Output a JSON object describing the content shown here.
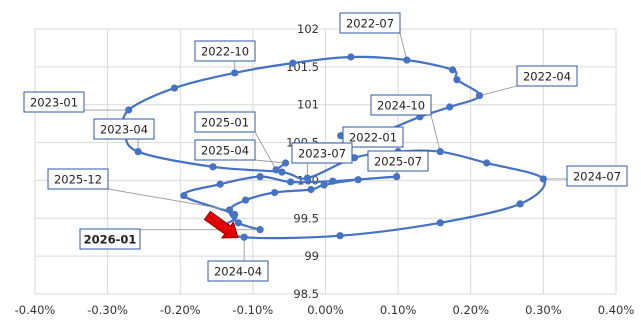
{
  "chart_data": {
    "type": "scatter",
    "title": "",
    "xlabel": "",
    "ylabel": "",
    "xlim": [
      -0.4,
      0.4
    ],
    "ylim": [
      98.5,
      102
    ],
    "x_unit": "%",
    "x_ticks": [
      "-0.40%",
      "-0.30%",
      "-0.20%",
      "-0.10%",
      "0.00%",
      "0.10%",
      "0.20%",
      "0.30%",
      "0.40%"
    ],
    "y_ticks": [
      "98.5",
      "99",
      "99.5",
      "100",
      "100.5",
      "101",
      "101.5",
      "102"
    ],
    "grid": true,
    "line_color": "#4472C4",
    "label_border_color": "#2E5AAC",
    "arrow_color": "#E00000",
    "series": [
      {
        "points": [
          {
            "date": "2022-01",
            "x": 0.021,
            "y": 100.59
          },
          {
            "x": 0.065,
            "y": 100.6
          },
          {
            "x": 0.13,
            "y": 100.84
          },
          {
            "x": 0.171,
            "y": 100.97
          },
          {
            "date": "2022-04",
            "x": 0.212,
            "y": 101.12
          },
          {
            "x": 0.181,
            "y": 101.33
          },
          {
            "x": 0.175,
            "y": 101.46
          },
          {
            "date": "2022-07",
            "x": 0.112,
            "y": 101.59
          },
          {
            "x": 0.035,
            "y": 101.63
          },
          {
            "x": -0.045,
            "y": 101.55
          },
          {
            "date": "2022-10",
            "x": -0.125,
            "y": 101.42
          },
          {
            "x": -0.208,
            "y": 101.22
          },
          {
            "date": "2023-01",
            "x": -0.271,
            "y": 100.93
          },
          {
            "x": -0.276,
            "y": 100.65
          },
          {
            "date": "2023-04",
            "x": -0.258,
            "y": 100.38
          },
          {
            "x": -0.155,
            "y": 100.18
          },
          {
            "x": -0.06,
            "y": 100.11
          },
          {
            "date": "2023-07",
            "x": -0.025,
            "y": 100.03
          },
          {
            "x": 0.04,
            "y": 100.3
          },
          {
            "x": 0.1,
            "y": 100.38
          },
          {
            "date": "2024-10",
            "x": 0.158,
            "y": 100.38
          },
          {
            "x": 0.222,
            "y": 100.23
          },
          {
            "date": "2024-07",
            "x": 0.3,
            "y": 100.02
          },
          {
            "x": 0.268,
            "y": 99.69
          },
          {
            "x": 0.158,
            "y": 99.44
          },
          {
            "x": 0.02,
            "y": 99.27
          },
          {
            "date": "2024-04",
            "x": -0.112,
            "y": 99.25
          },
          {
            "x": -0.137,
            "y": 99.4
          },
          {
            "x": -0.125,
            "y": 99.55
          },
          {
            "x": -0.195,
            "y": 99.8
          },
          {
            "x": -0.145,
            "y": 99.95
          },
          {
            "x": -0.09,
            "y": 100.05
          },
          {
            "x": -0.048,
            "y": 99.98
          },
          {
            "x": 0.01,
            "y": 99.99
          },
          {
            "date": "2025-07",
            "x": 0.098,
            "y": 100.05
          },
          {
            "x": 0.045,
            "y": 100.01
          },
          {
            "x": -0.002,
            "y": 99.94
          },
          {
            "x": -0.02,
            "y": 99.88
          },
          {
            "x": -0.07,
            "y": 99.84
          },
          {
            "x": -0.11,
            "y": 99.74
          },
          {
            "date": "2025-12",
            "x": -0.132,
            "y": 99.61
          },
          {
            "x": -0.12,
            "y": 99.44
          },
          {
            "date": "2026-01",
            "x": -0.09,
            "y": 99.35
          }
        ]
      },
      {
        "points": [
          {
            "date": "2025-04",
            "x": -0.055,
            "y": 100.23
          },
          {
            "date": "2025-01",
            "x": -0.068,
            "y": 100.14
          }
        ]
      }
    ],
    "annotations": [
      {
        "text": "2022-07",
        "date": "2022-07"
      },
      {
        "text": "2022-10",
        "date": "2022-10"
      },
      {
        "text": "2022-04",
        "date": "2022-04"
      },
      {
        "text": "2023-01",
        "date": "2023-01"
      },
      {
        "text": "2024-10",
        "date": "2024-10"
      },
      {
        "text": "2023-04",
        "date": "2023-04"
      },
      {
        "text": "2025-01",
        "date": "2025-01"
      },
      {
        "text": "2022-01",
        "date": "2022-01"
      },
      {
        "text": "2025-04",
        "date": "2025-04"
      },
      {
        "text": "2023-07",
        "date": "2023-07"
      },
      {
        "text": "2025-07",
        "date": "2025-07"
      },
      {
        "text": "2025-12",
        "date": "2025-12"
      },
      {
        "text": "2024-07",
        "date": "2024-07"
      },
      {
        "text": "2026-01",
        "date": "2026-01",
        "bold": true
      },
      {
        "text": "2024-04",
        "date": "2024-04"
      }
    ]
  }
}
